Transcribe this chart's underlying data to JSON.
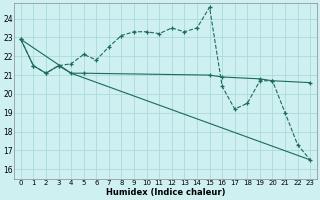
{
  "xlabel": "Humidex (Indice chaleur)",
  "bg_color": "#cff0f0",
  "grid_color": "#aadada",
  "line_color": "#1a6b5a",
  "xlim": [
    -0.5,
    23.5
  ],
  "ylim": [
    15.5,
    24.8
  ],
  "yticks": [
    16,
    17,
    18,
    19,
    20,
    21,
    22,
    23,
    24
  ],
  "xticks": [
    0,
    1,
    2,
    3,
    4,
    5,
    6,
    7,
    8,
    9,
    10,
    11,
    12,
    13,
    14,
    15,
    16,
    17,
    18,
    19,
    20,
    21,
    22,
    23
  ],
  "line1_x": [
    0,
    1,
    2,
    3,
    4,
    5,
    6,
    7,
    8,
    9,
    10,
    11,
    12,
    13,
    14,
    15,
    16,
    17,
    18,
    19,
    20,
    21,
    22,
    23
  ],
  "line1_y": [
    22.9,
    21.5,
    21.1,
    21.5,
    21.6,
    22.1,
    21.8,
    22.5,
    23.1,
    23.3,
    23.3,
    23.2,
    23.5,
    23.3,
    23.5,
    24.6,
    20.4,
    19.2,
    19.5,
    20.7,
    20.7,
    19.0,
    17.3,
    16.5
  ],
  "line2_x": [
    0,
    4,
    23
  ],
  "line2_y": [
    22.9,
    21.1,
    16.5
  ],
  "line3_x": [
    0,
    1,
    2,
    3,
    4,
    5,
    15,
    16,
    19,
    20,
    23
  ],
  "line3_y": [
    22.9,
    21.5,
    21.1,
    21.5,
    21.1,
    21.1,
    21.0,
    20.9,
    20.8,
    20.7,
    20.6
  ]
}
